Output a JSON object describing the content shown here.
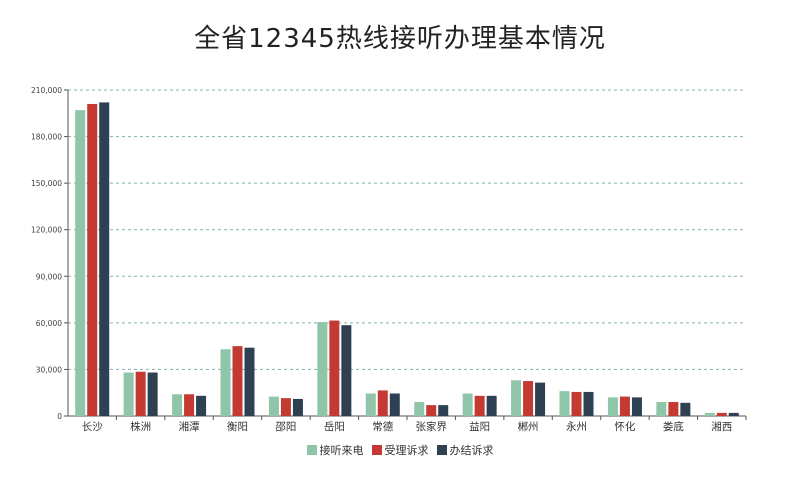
{
  "chart_data": {
    "type": "bar",
    "title": "全省12345热线接听办理基本情况",
    "categories": [
      "长沙",
      "株洲",
      "湘潭",
      "衡阳",
      "邵阳",
      "岳阳",
      "常德",
      "张家界",
      "益阳",
      "郴州",
      "永州",
      "怀化",
      "娄底",
      "湘西"
    ],
    "series": [
      {
        "name": "接听来电",
        "color": "#8fc5a8",
        "values": [
          197000,
          28000,
          14000,
          43000,
          12500,
          60500,
          14500,
          9000,
          14500,
          23000,
          16000,
          12000,
          9000,
          2000
        ]
      },
      {
        "name": "受理诉求",
        "color": "#c43a32",
        "values": [
          201000,
          28500,
          14000,
          45000,
          11500,
          61500,
          16500,
          7000,
          13000,
          22500,
          15500,
          12500,
          9000,
          2000
        ]
      },
      {
        "name": "办结诉求",
        "color": "#2e4052",
        "values": [
          202000,
          28000,
          13000,
          44000,
          11000,
          58500,
          14500,
          7000,
          13000,
          21500,
          15500,
          12000,
          8500,
          2000
        ]
      }
    ],
    "yticks": [
      "0",
      "30,000",
      "60,000",
      "90,000",
      "120,000",
      "150,000",
      "180,000",
      "210,000"
    ],
    "ylim": [
      0,
      210000
    ],
    "grid": true,
    "legend_position": "bottom"
  }
}
